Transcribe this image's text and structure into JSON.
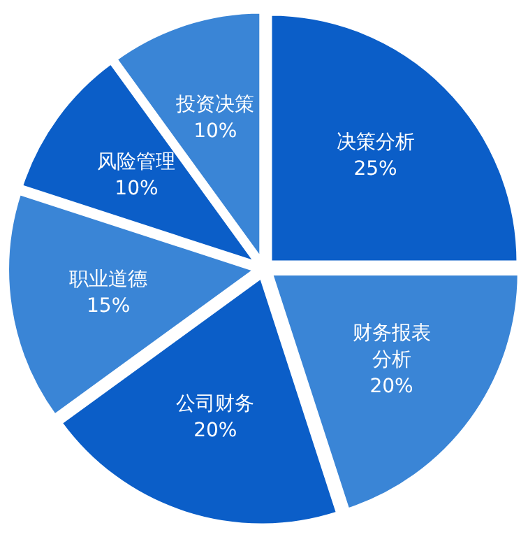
{
  "chart_data": {
    "type": "pie",
    "categories": [
      "决策分析",
      "财务报表分析",
      "公司财务",
      "职业道德",
      "风险管理",
      "投资决策"
    ],
    "values": [
      25,
      20,
      20,
      15,
      10,
      10
    ],
    "colors": [
      "#0b5ec8",
      "#3a85d6",
      "#0b5ec8",
      "#3a85d6",
      "#0b5ec8",
      "#3a85d6"
    ],
    "value_labels": [
      "25%",
      "20%",
      "20%",
      "15%",
      "10%",
      "10%"
    ]
  }
}
